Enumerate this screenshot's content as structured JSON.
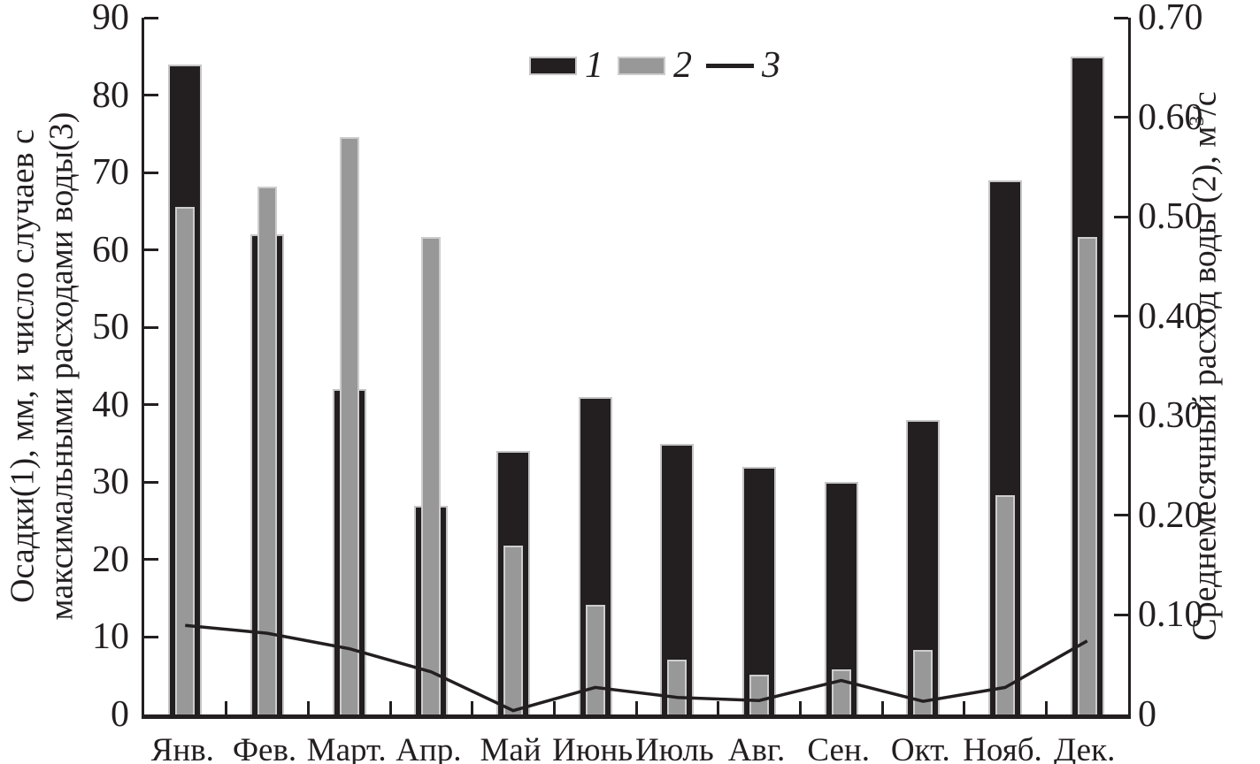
{
  "colors": {
    "series1_bar": "#231f20",
    "series2_bar": "#989898",
    "series3_line": "#231f20",
    "axis": "#231f20",
    "bar_outline": "#c9c9c9",
    "background": "#ffffff"
  },
  "legend": {
    "items": [
      {
        "label": "1",
        "swatch": "black-bar"
      },
      {
        "label": "2",
        "swatch": "gray-bar"
      },
      {
        "label": "3",
        "swatch": "line"
      }
    ]
  },
  "axes": {
    "left": {
      "title_line1": "Осадки(1), мм, и число случаев с",
      "title_line2": "максимальными расходами воды(3)",
      "tick_labels": [
        "90",
        "80",
        "70",
        "60",
        "50",
        "40",
        "30",
        "20",
        "10",
        "0"
      ],
      "tick_values": [
        90,
        80,
        70,
        60,
        50,
        40,
        30,
        20,
        10,
        0
      ],
      "range": [
        0,
        90
      ]
    },
    "right": {
      "title_prefix": "Среднемесячный расход воды (2), м",
      "title_sup": "3",
      "title_suffix": "/с",
      "tick_labels": [
        "0.70",
        "0.60",
        "0.50",
        "0.40",
        "0.30",
        "0.20",
        "0.10",
        "0"
      ],
      "tick_values": [
        0.7,
        0.6,
        0.5,
        0.4,
        0.3,
        0.2,
        0.1,
        0
      ],
      "range": [
        0,
        0.7
      ]
    }
  },
  "chart_data": {
    "type": "bar",
    "subtype": "bar+line combo, dual y-axis",
    "categories": [
      "Янв.",
      "Фев.",
      "Март.",
      "Апр.",
      "Май",
      "Июнь",
      "Июль",
      "Авг.",
      "Сен.",
      "Окт.",
      "Нояб.",
      "Дек."
    ],
    "series": [
      {
        "name": "1",
        "description": "Осадки, мм",
        "type": "bar",
        "axis": "left",
        "color": "#231f20",
        "values": [
          84,
          62,
          42,
          27,
          34,
          41,
          35,
          32,
          30,
          38,
          69,
          85
        ]
      },
      {
        "name": "2",
        "description": "Среднемесячный расход воды, м³/с",
        "type": "bar",
        "axis": "right",
        "color": "#989898",
        "values": [
          0.51,
          0.53,
          0.58,
          0.48,
          0.17,
          0.11,
          0.055,
          0.04,
          0.045,
          0.065,
          0.22,
          0.48
        ]
      },
      {
        "name": "3",
        "description": "Число случаев с максимальными расходами воды",
        "type": "line",
        "axis": "left",
        "color": "#231f20",
        "values": [
          11.5,
          10.5,
          8.5,
          5.5,
          0.5,
          3.5,
          2.2,
          1.8,
          4.4,
          1.7,
          3.5,
          9.5
        ]
      }
    ],
    "title": "",
    "xlabel": "",
    "ylabel_left": "Осадки(1), мм, и число случаев с максимальными расходами воды(3)",
    "ylabel_right": "Среднемесячный расход воды (2), м³/с",
    "ylim_left": [
      0,
      90
    ],
    "ylim_right": [
      0,
      0.7
    ],
    "grid": false,
    "legend_position": "top-center"
  }
}
